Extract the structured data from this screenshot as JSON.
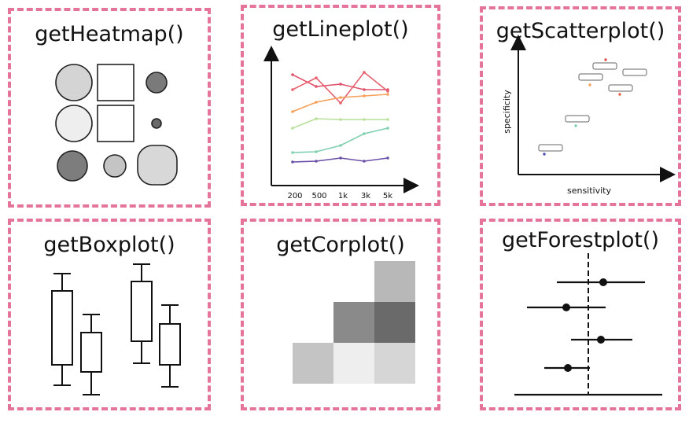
{
  "panels": {
    "heatmap": {
      "title": "getHeatmap()"
    },
    "lineplot": {
      "title": "getLineplot()",
      "x_ticks": [
        "200",
        "500",
        "1k",
        "3k",
        "5k"
      ]
    },
    "scatterplot": {
      "title": "getScatterplot()",
      "xlabel": "sensitivity",
      "ylabel": "specificity"
    },
    "boxplot": {
      "title": "getBoxplot()"
    },
    "corplot": {
      "title": "getCorplot()"
    },
    "forestplot": {
      "title": "getForestplot()"
    }
  },
  "colors": {
    "border": "#e5749b",
    "line_series": [
      "#e0506a",
      "#e8606e",
      "#f5a05a",
      "#b7e09a",
      "#7fd0b0",
      "#6a4fa8"
    ],
    "scatter_points": [
      "#e05050",
      "#f5a05a",
      "#e86040",
      "#7fd0b0",
      "#5050b0"
    ]
  },
  "heatmap_cells": [
    {
      "shape": "circle",
      "fill": "#d4d4d4"
    },
    {
      "shape": "square",
      "fill": "#ffffff"
    },
    {
      "shape": "circle",
      "fill": "#7a7a7a"
    },
    {
      "shape": "circle",
      "fill": "#eeeeee"
    },
    {
      "shape": "square",
      "fill": "#ffffff"
    },
    {
      "shape": "circle",
      "fill": "#6a6a6a"
    },
    {
      "shape": "circle",
      "fill": "#7d7d7d"
    },
    {
      "shape": "circle",
      "fill": "#c4c4c4"
    },
    {
      "shape": "squircle",
      "fill": "#d8d8d8"
    }
  ],
  "corplot_cells": [
    {
      "row": 0,
      "col": 2,
      "fill": "#b8b8b8"
    },
    {
      "row": 1,
      "col": 1,
      "fill": "#8a8a8a"
    },
    {
      "row": 1,
      "col": 2,
      "fill": "#6a6a6a"
    },
    {
      "row": 2,
      "col": 0,
      "fill": "#c4c4c4"
    },
    {
      "row": 2,
      "col": 1,
      "fill": "#eeeeee"
    },
    {
      "row": 2,
      "col": 2,
      "fill": "#d6d6d6"
    }
  ]
}
